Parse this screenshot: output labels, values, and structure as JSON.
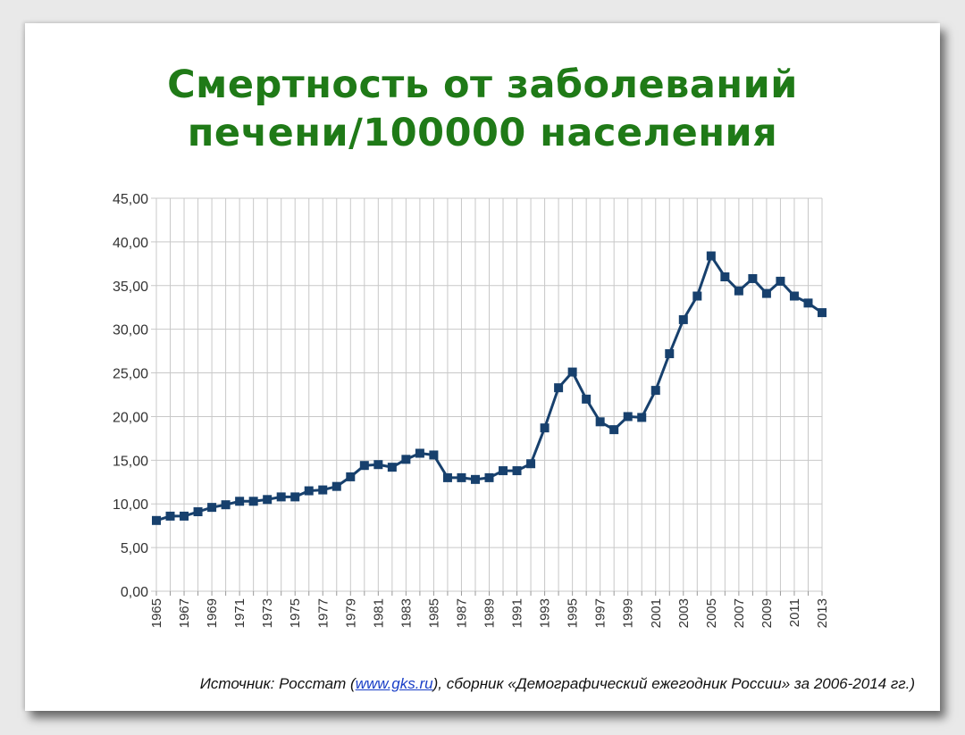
{
  "title": {
    "line1": "Смертность от заболеваний",
    "line2": "печени/100000 населения"
  },
  "source": {
    "prefix": "Источник: Росстат (",
    "link": "www.gks.ru",
    "suffix": "), сборник «Демографический ежегодник России» за 2006-2014 гг.)"
  },
  "colors": {
    "title": "#1f7a17",
    "series": "#17406d",
    "grid": "#c8c8c8",
    "link": "#1a3fc7"
  },
  "chart_data": {
    "type": "line",
    "title": "Смертность от заболеваний печени/100000 населения",
    "xlabel": "",
    "ylabel": "",
    "ylim": [
      0,
      45
    ],
    "yticks": [
      "0,00",
      "5,00",
      "10,00",
      "15,00",
      "20,00",
      "25,00",
      "30,00",
      "35,00",
      "40,00",
      "45,00"
    ],
    "xtick_labels": [
      "1965",
      "1967",
      "1969",
      "1971",
      "1973",
      "1975",
      "1977",
      "1979",
      "1981",
      "1983",
      "1985",
      "1987",
      "1989",
      "1991",
      "1993",
      "1995",
      "1997",
      "1999",
      "2001",
      "2003",
      "2005",
      "2007",
      "2009",
      "2011",
      "2013"
    ],
    "grid": true,
    "legend": "none",
    "marker": "square",
    "x": [
      1965,
      1966,
      1967,
      1968,
      1969,
      1970,
      1971,
      1972,
      1973,
      1974,
      1975,
      1976,
      1977,
      1978,
      1979,
      1980,
      1981,
      1982,
      1983,
      1984,
      1985,
      1986,
      1987,
      1988,
      1989,
      1990,
      1991,
      1992,
      1993,
      1994,
      1995,
      1996,
      1997,
      1998,
      1999,
      2000,
      2001,
      2002,
      2003,
      2004,
      2005,
      2006,
      2007,
      2008,
      2009,
      2010,
      2011,
      2012,
      2013
    ],
    "series": [
      {
        "values": [
          8.1,
          8.6,
          8.6,
          9.1,
          9.6,
          9.9,
          10.3,
          10.3,
          10.5,
          10.8,
          10.8,
          11.5,
          11.6,
          12.0,
          13.1,
          14.4,
          14.5,
          14.2,
          15.1,
          15.8,
          15.6,
          13.0,
          13.0,
          12.8,
          13.0,
          13.8,
          13.8,
          14.6,
          18.7,
          23.3,
          25.1,
          22.0,
          19.4,
          18.5,
          20.0,
          19.9,
          23.0,
          27.2,
          31.1,
          33.8,
          38.4,
          36.0,
          34.4,
          35.8,
          34.1,
          35.5,
          33.8,
          33.0,
          31.9
        ]
      }
    ]
  }
}
